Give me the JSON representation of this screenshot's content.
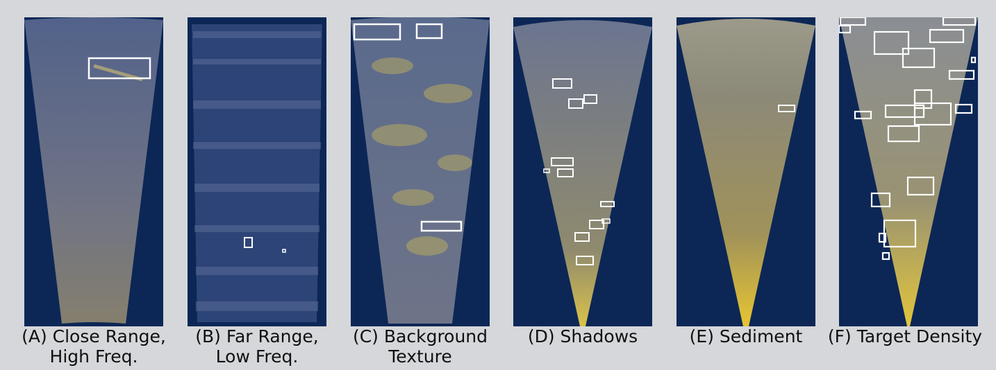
{
  "figure": {
    "panels": [
      {
        "label": "(A) Close Range,\nHigh Freq.",
        "texture": "fine-speckle"
      },
      {
        "label": "(B) Far Range,\nLow Freq.",
        "texture": "banded"
      },
      {
        "label": "(C) Background\nTexture",
        "texture": "patchy"
      },
      {
        "label": "(D) Shadows",
        "texture": "streaks"
      },
      {
        "label": "(E) Sediment",
        "texture": "smooth"
      },
      {
        "label": "(F) Target Density",
        "texture": "dense-targets"
      }
    ],
    "colors": {
      "background": "#d5d7da",
      "panel": "#0c2756",
      "sonar_dark": "#3a4f7a",
      "sonar_bright": "#e0c93a",
      "box": "#ffffff"
    }
  }
}
